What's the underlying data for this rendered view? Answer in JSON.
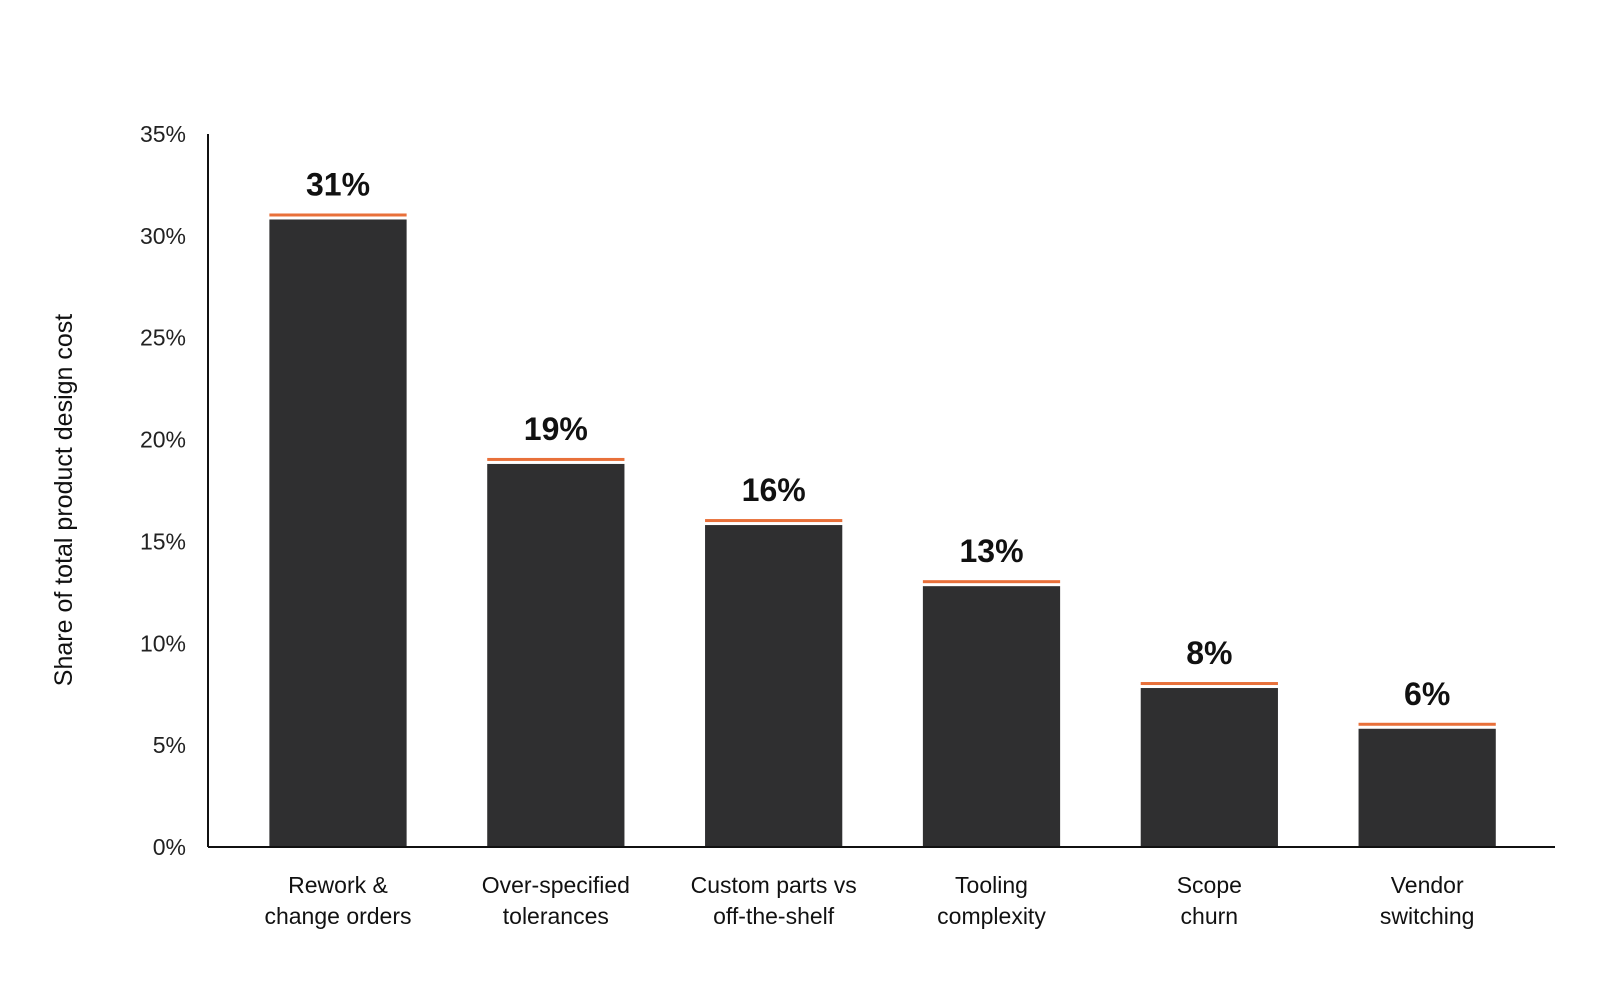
{
  "chart_data": {
    "type": "bar",
    "categories": [
      [
        "Rework &",
        "change orders"
      ],
      [
        "Over-specified",
        "tolerances"
      ],
      [
        "Custom parts vs",
        "off-the-shelf"
      ],
      [
        "Tooling",
        "complexity"
      ],
      [
        "Scope",
        "churn"
      ],
      [
        "Vendor",
        "switching"
      ]
    ],
    "values": [
      31,
      19,
      16,
      13,
      8,
      6
    ],
    "value_labels": [
      "31%",
      "19%",
      "16%",
      "13%",
      "8%",
      "6%"
    ],
    "ylabel": "Share of total product design cost",
    "ylim": [
      0,
      35
    ],
    "yticks": [
      0,
      5,
      10,
      15,
      20,
      25,
      30,
      35
    ],
    "ytick_labels": [
      "0%",
      "5%",
      "10%",
      "15%",
      "20%",
      "25%",
      "30%",
      "35%"
    ],
    "grid": false,
    "colors": {
      "bar": "#2f2f30",
      "accent": "#e8703a",
      "axis": "#111111"
    }
  }
}
